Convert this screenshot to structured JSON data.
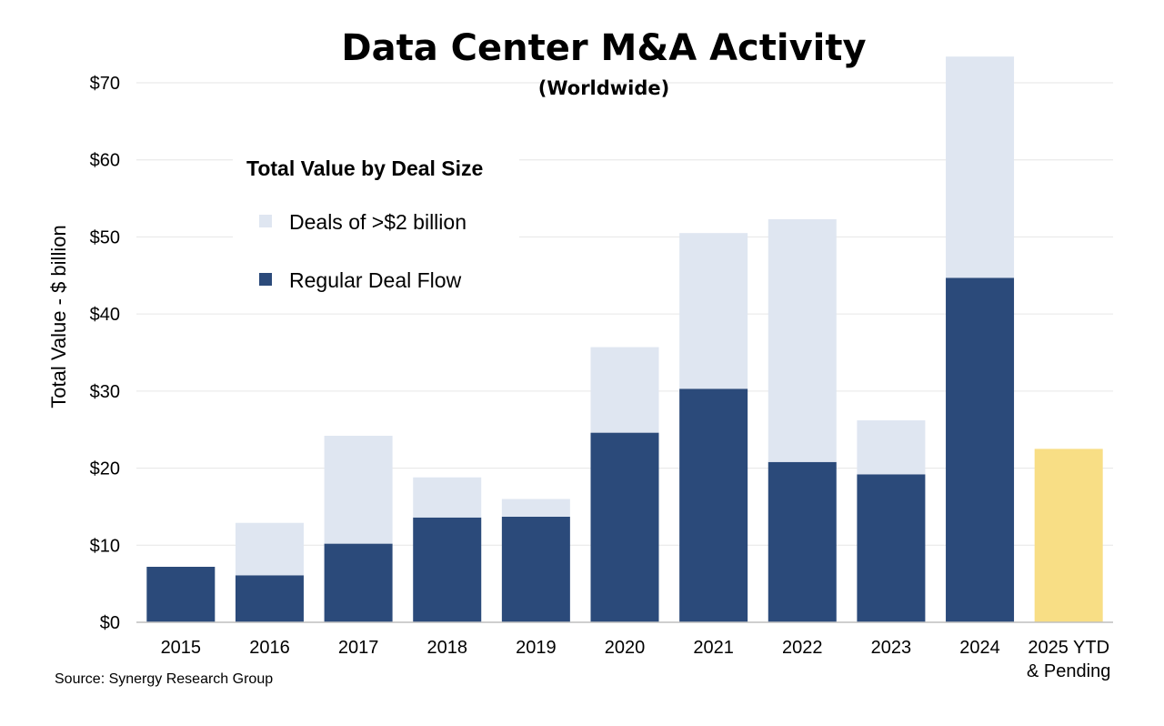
{
  "chart_data": {
    "type": "bar",
    "stacked": true,
    "title": "Data Center M&A Activity",
    "subtitle": "(Worldwide)",
    "ylabel": "Total Value - $ billion",
    "xlabel": "",
    "ylim": [
      0,
      70
    ],
    "yticks": [
      0,
      10,
      20,
      30,
      40,
      50,
      60,
      70
    ],
    "ytick_labels": [
      "$0",
      "$10",
      "$20",
      "$30",
      "$40",
      "$50",
      "$60",
      "$70"
    ],
    "grid": true,
    "categories": [
      "2015",
      "2016",
      "2017",
      "2018",
      "2019",
      "2020",
      "2021",
      "2022",
      "2023",
      "2024",
      "2025 YTD & Pending"
    ],
    "category_lines": [
      [
        "2015"
      ],
      [
        "2016"
      ],
      [
        "2017"
      ],
      [
        "2018"
      ],
      [
        "2019"
      ],
      [
        "2020"
      ],
      [
        "2021"
      ],
      [
        "2022"
      ],
      [
        "2023"
      ],
      [
        "2024"
      ],
      [
        "2025 YTD",
        "& Pending"
      ]
    ],
    "series": [
      {
        "name": "Regular Deal Flow",
        "color": "#2b4a7a",
        "values": [
          7.2,
          6.1,
          10.2,
          13.6,
          13.7,
          24.6,
          30.3,
          20.8,
          19.2,
          44.7,
          null
        ]
      },
      {
        "name": "Deals of >$2 billion",
        "color": "#dfe6f1",
        "values": [
          0,
          6.8,
          14.0,
          5.2,
          2.3,
          11.1,
          20.2,
          31.5,
          7.0,
          28.7,
          null
        ]
      },
      {
        "name": "2025 YTD & Pending",
        "color": "#f8de85",
        "values": [
          null,
          null,
          null,
          null,
          null,
          null,
          null,
          null,
          null,
          null,
          22.5
        ]
      }
    ],
    "legend": {
      "title": "Total Value by Deal Size",
      "placement": "top-left",
      "items": [
        {
          "label": "Deals of >$2 billion",
          "color": "#dfe6f1"
        },
        {
          "label": "Regular Deal Flow",
          "color": "#2b4a7a"
        }
      ]
    },
    "source": "Source: Synergy Research Group"
  }
}
